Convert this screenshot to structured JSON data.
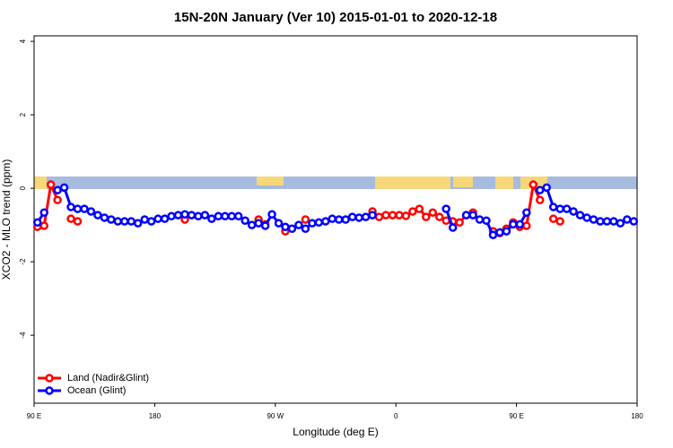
{
  "chart_data": {
    "type": "line",
    "title": "15N-20N January (Ver 10)   2015-01-01 to 2020-12-18",
    "x_label": "Longitude (deg E)",
    "y_label": "XCO2 - MLO trend (ppm)",
    "xlim": [
      90,
      540
    ],
    "xticks": [
      {
        "value": 90,
        "label": "90 E"
      },
      180,
      {
        "value": 270,
        "label": "90 W"
      },
      {
        "value": 360,
        "label": "0"
      },
      {
        "value": 450,
        "label": "90 E"
      },
      {
        "value": 540,
        "label": "180"
      }
    ],
    "ylim": [
      -5.85,
      4.15
    ],
    "yticks": [
      -4,
      -2,
      0,
      2,
      4
    ],
    "legend": "bottom-left",
    "x": [
      92.5,
      97.5,
      102.5,
      107.5,
      112.5,
      117.5,
      122.5,
      127.5,
      132.5,
      137.5,
      142.5,
      147.5,
      152.5,
      157.5,
      162.5,
      167.5,
      172.5,
      177.5,
      182.5,
      187.5,
      192.5,
      197.5,
      202.5,
      207.5,
      212.5,
      217.5,
      222.5,
      227.5,
      232.5,
      237.5,
      242.5,
      247.5,
      252.5,
      257.5,
      262.5,
      267.5,
      272.5,
      277.5,
      282.5,
      287.5,
      292.5,
      297.5,
      302.5,
      307.5,
      312.5,
      317.5,
      322.5,
      327.5,
      332.5,
      337.5,
      342.5,
      347.5,
      352.5,
      357.5,
      362.5,
      367.5,
      372.5,
      377.5,
      382.5,
      387.5,
      392.5,
      397.5,
      402.5,
      407.5,
      412.5,
      417.5,
      422.5,
      427.5,
      432.5,
      437.5,
      442.5,
      447.5,
      452.5,
      457.5,
      462.5,
      467.5,
      472.5,
      477.5,
      482.5,
      487.5,
      492.5,
      497.5,
      502.5,
      507.5,
      512.5,
      517.5,
      522.5,
      527.5,
      532.5,
      537.5
    ],
    "series": [
      {
        "name": "Land (Nadir&Glint)",
        "color": "#ff0000",
        "values": [
          -1.05,
          -1.02,
          0.1,
          -0.32,
          null,
          -0.83,
          -0.9,
          null,
          null,
          null,
          null,
          null,
          null,
          null,
          null,
          null,
          null,
          null,
          null,
          null,
          null,
          null,
          -0.85,
          null,
          null,
          null,
          null,
          null,
          null,
          null,
          null,
          null,
          null,
          -0.85,
          -0.98,
          null,
          null,
          -1.17,
          null,
          null,
          -0.85,
          null,
          null,
          null,
          null,
          null,
          null,
          null,
          null,
          null,
          -0.63,
          -0.78,
          -0.73,
          -0.73,
          -0.73,
          -0.75,
          -0.63,
          -0.56,
          -0.78,
          -0.66,
          -0.78,
          -0.88,
          -0.9,
          -0.93,
          -0.73,
          -0.66,
          null,
          null,
          -1.17,
          -1.22,
          -1.1,
          -0.93,
          -1.05,
          -1.02,
          0.1,
          -0.32,
          null,
          -0.83,
          -0.9,
          null,
          null,
          null,
          null,
          null,
          null,
          null,
          null,
          null,
          null,
          null
        ]
      },
      {
        "name": "Ocean (Glint)",
        "color": "#0000ff",
        "values": [
          -0.93,
          -0.66,
          null,
          -0.05,
          0.02,
          -0.51,
          -0.56,
          -0.56,
          -0.63,
          -0.73,
          -0.8,
          -0.85,
          -0.9,
          -0.9,
          -0.9,
          -0.95,
          -0.85,
          -0.9,
          -0.83,
          -0.83,
          -0.76,
          -0.73,
          -0.71,
          -0.73,
          -0.76,
          -0.73,
          -0.83,
          -0.76,
          -0.76,
          -0.76,
          -0.76,
          -0.88,
          -1.0,
          -0.95,
          -1.02,
          -0.71,
          -0.95,
          -1.05,
          -1.1,
          -1.0,
          -1.1,
          -0.95,
          -0.93,
          -0.9,
          -0.83,
          -0.85,
          -0.85,
          -0.78,
          -0.8,
          -0.78,
          -0.73,
          null,
          null,
          null,
          null,
          null,
          null,
          null,
          null,
          null,
          null,
          -0.56,
          -1.07,
          null,
          -0.73,
          -0.73,
          -0.85,
          -0.88,
          -1.27,
          -1.2,
          -1.17,
          -0.98,
          -0.98,
          -0.66,
          null,
          -0.05,
          0.02,
          -0.51,
          -0.56,
          -0.56,
          -0.63,
          -0.73,
          -0.8,
          -0.85,
          -0.9,
          -0.9,
          -0.9,
          -0.95,
          -0.85,
          -0.9
        ]
      }
    ]
  }
}
